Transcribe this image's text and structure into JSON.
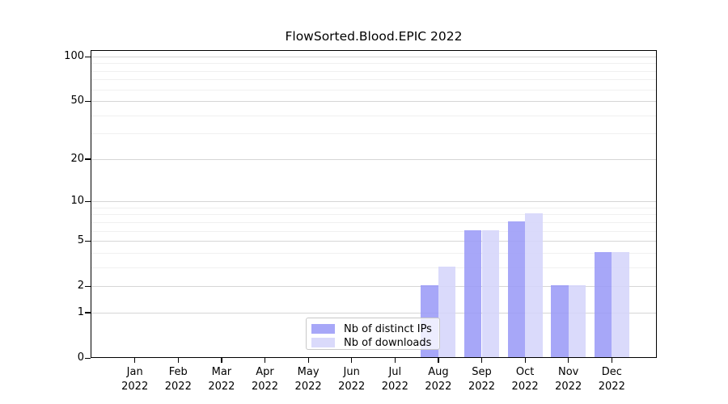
{
  "title": "FlowSorted.Blood.EPIC 2022",
  "colors": {
    "distinct_ips": "#9b9bf7",
    "downloads": "#d5d5fa",
    "bar_opacity": 0.88,
    "grid_major": "#d6d6d6",
    "grid_minor": "#f0f0f0",
    "spine": "#000000",
    "legend_border": "#c8c8c8",
    "background": "#ffffff",
    "text": "#000000"
  },
  "legend": {
    "entries": [
      {
        "label": "Nb of distinct IPs",
        "color_key": "distinct_ips"
      },
      {
        "label": "Nb of downloads",
        "color_key": "downloads"
      }
    ],
    "position": "lower center"
  },
  "chart_data": {
    "type": "bar",
    "title": "FlowSorted.Blood.EPIC 2022",
    "categories": [
      {
        "month": "Jan",
        "year": "2022"
      },
      {
        "month": "Feb",
        "year": "2022"
      },
      {
        "month": "Mar",
        "year": "2022"
      },
      {
        "month": "Apr",
        "year": "2022"
      },
      {
        "month": "May",
        "year": "2022"
      },
      {
        "month": "Jun",
        "year": "2022"
      },
      {
        "month": "Jul",
        "year": "2022"
      },
      {
        "month": "Aug",
        "year": "2022"
      },
      {
        "month": "Sep",
        "year": "2022"
      },
      {
        "month": "Oct",
        "year": "2022"
      },
      {
        "month": "Nov",
        "year": "2022"
      },
      {
        "month": "Dec",
        "year": "2022"
      }
    ],
    "series": [
      {
        "name": "Nb of distinct IPs",
        "values": [
          0,
          0,
          0,
          0,
          0,
          0,
          0,
          2,
          6,
          7,
          2,
          4
        ]
      },
      {
        "name": "Nb of downloads",
        "values": [
          0,
          0,
          0,
          0,
          0,
          0,
          0,
          3,
          6,
          8,
          2,
          4
        ]
      }
    ],
    "xlabel": "",
    "ylabel": "",
    "yscale": "log1p",
    "ylim": [
      0,
      111
    ],
    "yticks": [
      0,
      1,
      2,
      5,
      10,
      20,
      50,
      100
    ],
    "ytick_labels": [
      "0",
      "1",
      "2",
      "5",
      "10",
      "20",
      "50",
      "100"
    ],
    "minor_gridlines": [
      3,
      4,
      6,
      7,
      8,
      9,
      30,
      40,
      60,
      70,
      80,
      90
    ],
    "grid": true,
    "legend_position": "lower center"
  }
}
